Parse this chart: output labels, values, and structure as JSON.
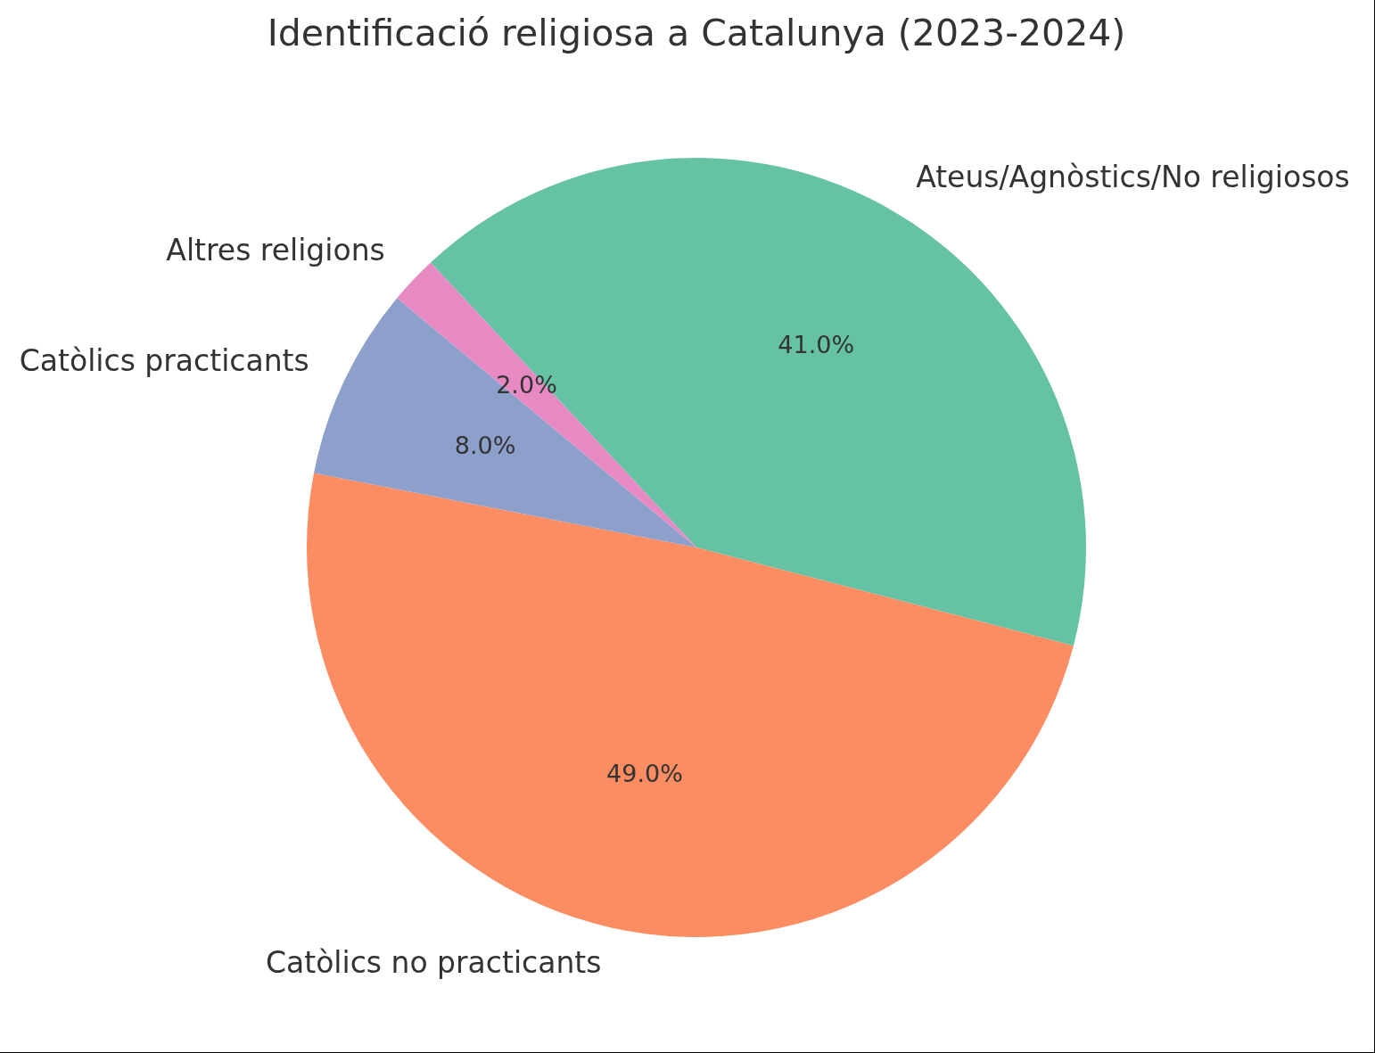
{
  "chart_data": {
    "type": "pie",
    "title": "Identificació religiosa a Catalunya (2023-2024)",
    "categories": [
      "Ateus/Agnòstics/No religiosos",
      "Catòlics no practicants",
      "Catòlics practicants",
      "Altres religions"
    ],
    "values": [
      41,
      49,
      8,
      2
    ],
    "colors": [
      "#66c2a5",
      "#fc8d62",
      "#8da0cb",
      "#e78ac3"
    ],
    "value_labels": [
      "41.0%",
      "49.0%",
      "8.0%",
      "2.0%"
    ]
  }
}
